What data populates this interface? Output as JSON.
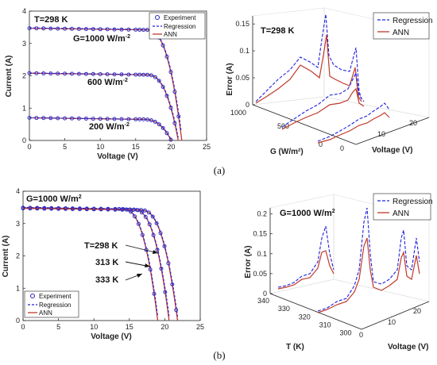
{
  "labels": {
    "panel_a": "(a)",
    "panel_b": "(b)"
  },
  "colors": {
    "experiment": "#3030c0",
    "regression": "#2020e0",
    "ann": "#c0392b"
  },
  "chart_data": [
    {
      "type": "line",
      "panel": "a-left",
      "xlabel": "Voltage (V)",
      "ylabel": "Current (A)",
      "xlim": [
        0,
        25
      ],
      "ylim": [
        0,
        4
      ],
      "xticks": [
        "0",
        "5",
        "10",
        "15",
        "20",
        "25"
      ],
      "yticks": [
        "0",
        "1",
        "2",
        "3",
        "4"
      ],
      "annotations": {
        "temp": "T=298 K",
        "g1000": "G=1000 W/m",
        "g600": "600 W/m",
        "g200": "200 W/m",
        "exp": "-2"
      },
      "legend": [
        "Experiment",
        "Regression",
        "ANN"
      ],
      "series": [
        {
          "name": "Experiment",
          "curve": "G=1000",
          "isc": 3.47,
          "voc": 21.5,
          "vknee": 16.5
        },
        {
          "name": "Experiment",
          "curve": "G=600",
          "isc": 2.08,
          "voc": 21.0,
          "vknee": 16.5
        },
        {
          "name": "Experiment",
          "curve": "G=200",
          "isc": 0.7,
          "voc": 20.0,
          "vknee": 16.0
        }
      ]
    },
    {
      "type": "line",
      "panel": "a-right",
      "zlabel": "Error (A)",
      "xlabel": "Voltage (V)",
      "ylabel": "G (W/m²)",
      "zticks": [
        "0",
        "0.05",
        "0.1",
        "0.15"
      ],
      "xticks": [
        "0",
        "10",
        "20"
      ],
      "yticks": [
        "500",
        "1000"
      ],
      "yextra": "0",
      "annotations": {
        "temp": "T=298 K"
      },
      "legend": [
        "Regression",
        "ANN"
      ]
    },
    {
      "type": "line",
      "panel": "b-left",
      "xlabel": "Voltage (V)",
      "ylabel": "Current (A)",
      "xlim": [
        0,
        25
      ],
      "ylim": [
        0,
        4
      ],
      "xticks": [
        "0",
        "5",
        "10",
        "15",
        "20",
        "25"
      ],
      "yticks": [
        "0",
        "1",
        "2",
        "3",
        "4"
      ],
      "annotations": {
        "g": "G=1000 W/m",
        "g_exp": "2",
        "t298": "T=298 K",
        "t313": "313  K",
        "t333": "333  K"
      },
      "legend": [
        "Experiment",
        "Regression",
        "ANN"
      ],
      "series": [
        {
          "name": "Experiment",
          "curve": "T=298 K",
          "isc": 3.47,
          "voc": 21.8,
          "vknee": 16.5
        },
        {
          "name": "Experiment",
          "curve": "T=313 K",
          "isc": 3.48,
          "voc": 20.6,
          "vknee": 15.5
        },
        {
          "name": "Experiment",
          "curve": "T=333 K",
          "isc": 3.49,
          "voc": 19.0,
          "vknee": 14.0
        }
      ]
    },
    {
      "type": "line",
      "panel": "b-right",
      "zlabel": "Error (A)",
      "xlabel": "Voltage (V)",
      "ylabel": "T (K)",
      "zticks": [
        "0",
        "0.05",
        "0.1",
        "0.15",
        "0.2"
      ],
      "xticks": [
        "0",
        "10",
        "20"
      ],
      "yticks": [
        "340",
        "330",
        "320",
        "310",
        "300"
      ],
      "annotations": {
        "g": "G=1000 W/m",
        "g_exp": "2"
      },
      "legend": [
        "Regression",
        "ANN"
      ]
    }
  ]
}
